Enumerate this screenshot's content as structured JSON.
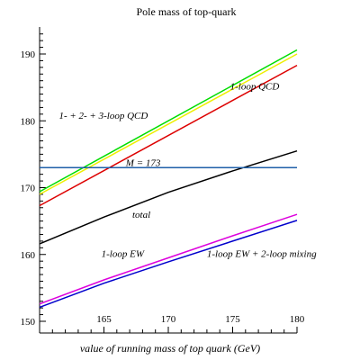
{
  "chart_data": {
    "type": "line",
    "title": "Pole mass of top-quark",
    "xlabel": "value of running mass of top quark (GeV)",
    "ylabel": "",
    "xlim": [
      160,
      180
    ],
    "ylim": [
      150,
      195
    ],
    "x_ticks": [
      165,
      170,
      175,
      180
    ],
    "y_ticks": [
      150,
      160,
      170,
      180,
      190
    ],
    "grid": false,
    "legend": "none",
    "series": [
      {
        "name": "",
        "color": "#00dd00",
        "x": [
          160,
          180
        ],
        "y": [
          169.4,
          190.6
        ]
      },
      {
        "name": "",
        "color": "#eeee00",
        "x": [
          160,
          180
        ],
        "y": [
          169.0,
          190.0
        ]
      },
      {
        "name": "1-loop QCD",
        "color": "#dd0000",
        "x": [
          160,
          180
        ],
        "y": [
          167.3,
          188.3
        ]
      },
      {
        "name": "total",
        "color": "#000000",
        "x": [
          160,
          165,
          170,
          175,
          180
        ],
        "y": [
          161.6,
          165.6,
          169.3,
          172.5,
          175.5
        ]
      },
      {
        "name": "M = 173",
        "color": "#1f5fa8",
        "x": [
          160,
          180
        ],
        "y": [
          173.0,
          173.0
        ]
      },
      {
        "name": "1-loop EW",
        "color": "#dd00dd",
        "x": [
          160,
          165,
          170,
          175,
          180
        ],
        "y": [
          152.6,
          156.2,
          159.5,
          162.8,
          166.0
        ]
      },
      {
        "name": "1-loop EW + 2-loop mixing",
        "color": "#0000cc",
        "x": [
          160,
          165,
          170,
          175,
          180
        ],
        "y": [
          152.1,
          155.7,
          158.9,
          162.0,
          165.1
        ]
      }
    ],
    "annotations": [
      {
        "key": "qcd123",
        "text": "1- + 2- + 3-loop QCD",
        "x": 161.5,
        "y": 180.3
      },
      {
        "key": "qcd1",
        "text": "1-loop QCD",
        "x": 174.8,
        "y": 184.7
      },
      {
        "key": "mline",
        "text": "M = 173",
        "x": 166.7,
        "y": 173.2
      },
      {
        "key": "total",
        "text": "total",
        "x": 167.2,
        "y": 165.5
      },
      {
        "key": "ew1",
        "text": "1-loop EW",
        "x": 164.8,
        "y": 159.6
      },
      {
        "key": "ew2",
        "text": "1-loop EW + 2-loop mixing",
        "x": 173.0,
        "y": 159.6
      }
    ]
  }
}
